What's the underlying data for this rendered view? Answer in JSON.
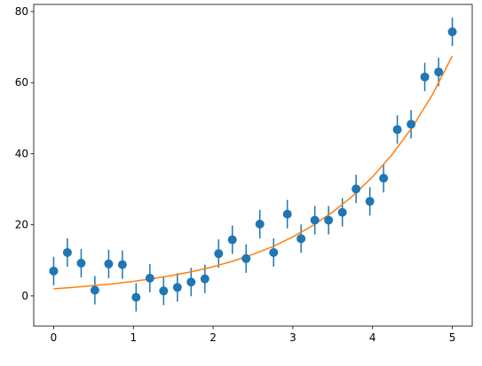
{
  "chart_data": {
    "type": "scatter",
    "title": "",
    "xlabel": "",
    "ylabel": "",
    "xlim": [
      -0.25,
      5.25
    ],
    "ylim": [
      -8.5,
      82
    ],
    "xticks": [
      0,
      1,
      2,
      3,
      4,
      5
    ],
    "yticks": [
      0,
      20,
      40,
      60,
      80
    ],
    "xtick_labels": [
      "0",
      "1",
      "2",
      "3",
      "4",
      "5"
    ],
    "ytick_labels": [
      "0",
      "20",
      "40",
      "60",
      "80"
    ],
    "grid": false,
    "legend": "none",
    "series": [
      {
        "kind": "errorbar",
        "color": "#1f77b4",
        "x": [
          0.0,
          0.172,
          0.345,
          0.517,
          0.69,
          0.862,
          1.034,
          1.207,
          1.379,
          1.552,
          1.724,
          1.897,
          2.069,
          2.241,
          2.414,
          2.586,
          2.759,
          2.931,
          3.103,
          3.276,
          3.448,
          3.621,
          3.793,
          3.966,
          4.138,
          4.31,
          4.483,
          4.655,
          4.828,
          5.0
        ],
        "y": [
          7.0,
          12.2,
          9.2,
          1.6,
          9.0,
          8.8,
          -0.4,
          5.0,
          1.4,
          2.4,
          3.9,
          4.8,
          11.9,
          15.8,
          10.5,
          20.2,
          12.2,
          23.0,
          16.1,
          21.3,
          21.3,
          23.5,
          30.1,
          26.6,
          33.1,
          46.8,
          48.3,
          61.6,
          63.0,
          74.3
        ],
        "yerr": 4
      },
      {
        "kind": "line",
        "color": "#ff7f0e",
        "x": [
          0.0,
          0.25,
          0.5,
          0.75,
          1.0,
          1.25,
          1.5,
          1.75,
          2.0,
          2.25,
          2.5,
          2.75,
          3.0,
          3.25,
          3.5,
          3.75,
          4.0,
          4.25,
          4.5,
          4.75,
          5.0
        ],
        "y": [
          2.0,
          2.4,
          2.9,
          3.4,
          4.1,
          4.9,
          5.8,
          6.9,
          8.2,
          9.8,
          11.7,
          13.9,
          16.6,
          19.8,
          23.6,
          28.1,
          33.5,
          39.9,
          47.5,
          56.6,
          67.5
        ]
      }
    ]
  }
}
